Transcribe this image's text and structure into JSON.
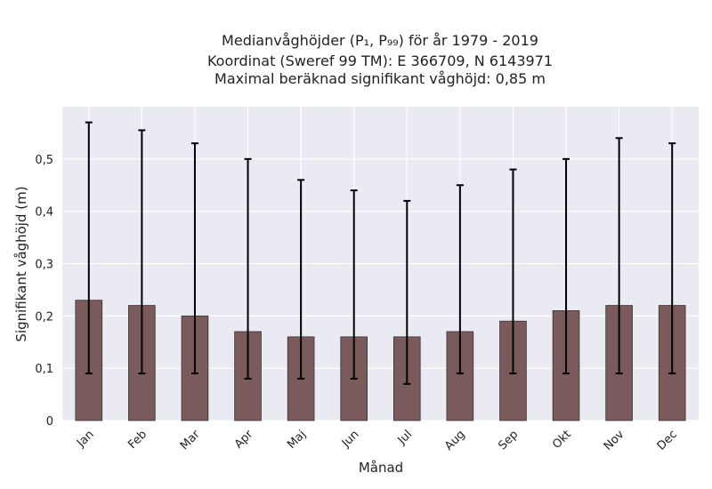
{
  "chart_data": {
    "type": "bar",
    "title_lines": [
      "Medianvåghöjder (P₁, P₉₉) för år 1979 - 2019",
      "Koordinat (Sweref 99 TM): E 366709, N 6143971",
      "Maximal beräknad signifikant våghöjd: 0,85 m"
    ],
    "xlabel": "Månad",
    "ylabel": "Signifikant våghöjd (m)",
    "categories": [
      "Jan",
      "Feb",
      "Mar",
      "Apr",
      "Maj",
      "Jun",
      "Jul",
      "Aug",
      "Sep",
      "Okt",
      "Nov",
      "Dec"
    ],
    "values": [
      0.23,
      0.22,
      0.2,
      0.17,
      0.16,
      0.16,
      0.16,
      0.17,
      0.19,
      0.21,
      0.22,
      0.22
    ],
    "p1": [
      0.09,
      0.09,
      0.09,
      0.08,
      0.08,
      0.08,
      0.07,
      0.09,
      0.09,
      0.09,
      0.09,
      0.09
    ],
    "p99": [
      0.57,
      0.555,
      0.53,
      0.5,
      0.46,
      0.44,
      0.42,
      0.45,
      0.48,
      0.5,
      0.54,
      0.53
    ],
    "ylim": [
      0,
      0.6
    ],
    "yticks": [
      0,
      0.1,
      0.2,
      0.3,
      0.4,
      0.5
    ],
    "ytick_labels": [
      "0",
      "0,1",
      "0,2",
      "0,3",
      "0,4",
      "0,5"
    ],
    "grid": true,
    "bar_color": "#7a5a5a",
    "bar_edge_color": "#333333",
    "errorbar_color": "#000000",
    "plot_background": "#eaeaf2",
    "grid_color": "#ffffff"
  }
}
